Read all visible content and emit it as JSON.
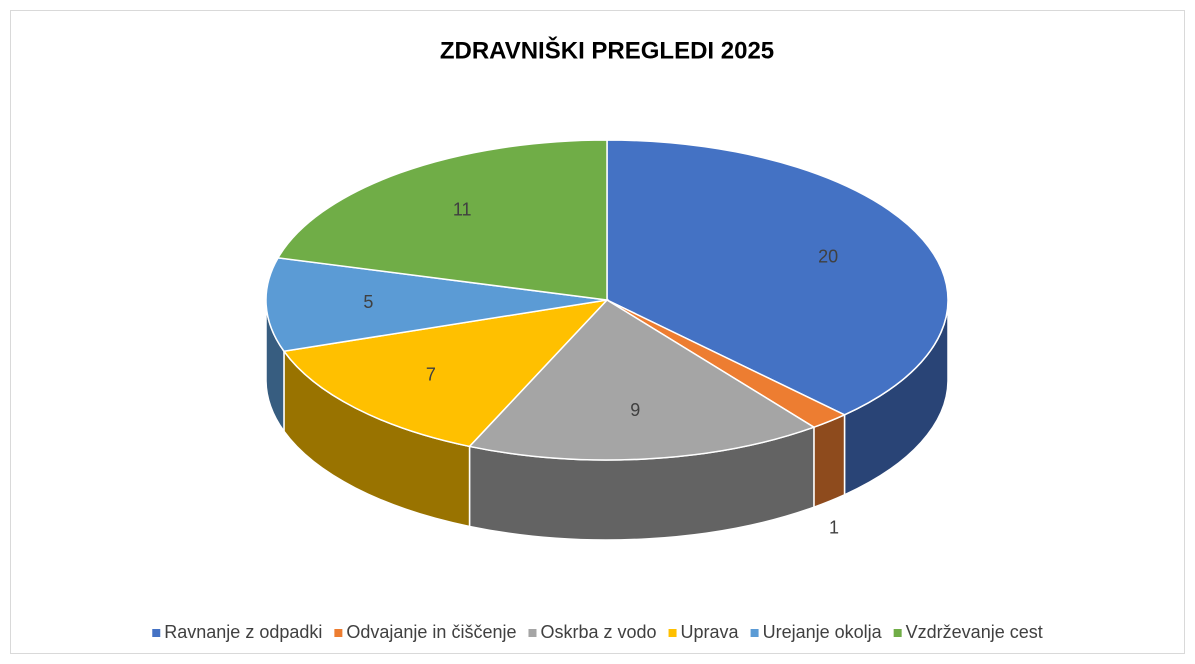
{
  "chart_data": {
    "type": "pie",
    "title": "ZDRAVNIŠKI PREGLEDI 2025",
    "categories": [
      "Ravnanje z odpadki",
      "Odvajanje in čiščenje",
      "Oskrba z vodo",
      "Uprava",
      "Urejanje okolja",
      "Vzdrževanje cest"
    ],
    "values": [
      20,
      1,
      9,
      7,
      5,
      11
    ],
    "colors": [
      "#4472c4",
      "#ed7d31",
      "#a5a5a5",
      "#ffc000",
      "#5b9bd5",
      "#70ad47"
    ],
    "legend": "bottom"
  }
}
